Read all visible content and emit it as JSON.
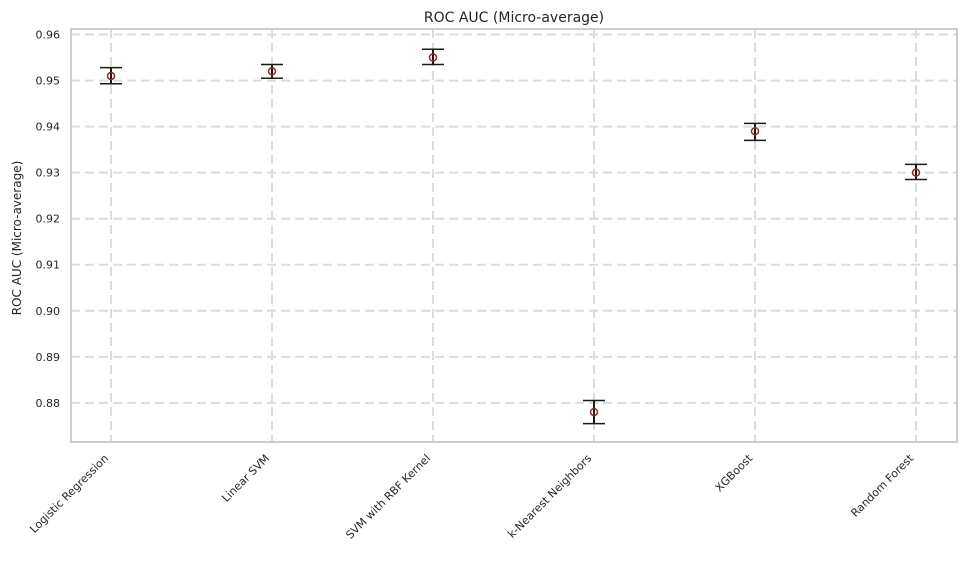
{
  "chart_data": {
    "type": "scatter",
    "title": "ROC AUC (Micro-average)",
    "xlabel": "",
    "ylabel": "ROC AUC (Micro-average)",
    "categories": [
      "Logistic Regression",
      "Linear SVM",
      "SVM with RBF Kernel",
      "k-Nearest Neighbors",
      "XGBoost",
      "Random Forest"
    ],
    "values": [
      0.951,
      0.952,
      0.955,
      0.878,
      0.939,
      0.93
    ],
    "error_low": [
      0.9493,
      0.9505,
      0.9535,
      0.8755,
      0.937,
      0.9285
    ],
    "error_high": [
      0.9528,
      0.9535,
      0.9568,
      0.8805,
      0.9407,
      0.9318
    ],
    "ylim": [
      0.8715,
      0.9612
    ],
    "yticks": [
      0.88,
      0.89,
      0.9,
      0.91,
      0.92,
      0.93,
      0.94,
      0.95,
      0.96
    ],
    "ytick_labels": [
      "0.88",
      "0.89",
      "0.90",
      "0.91",
      "0.92",
      "0.93",
      "0.94",
      "0.95",
      "0.96"
    ],
    "grid": true,
    "colors": {
      "marker": "#8b2a2a",
      "errorbar": "#1a1a1a",
      "grid": "#dcdcdc",
      "axes": "#cccccc"
    }
  }
}
